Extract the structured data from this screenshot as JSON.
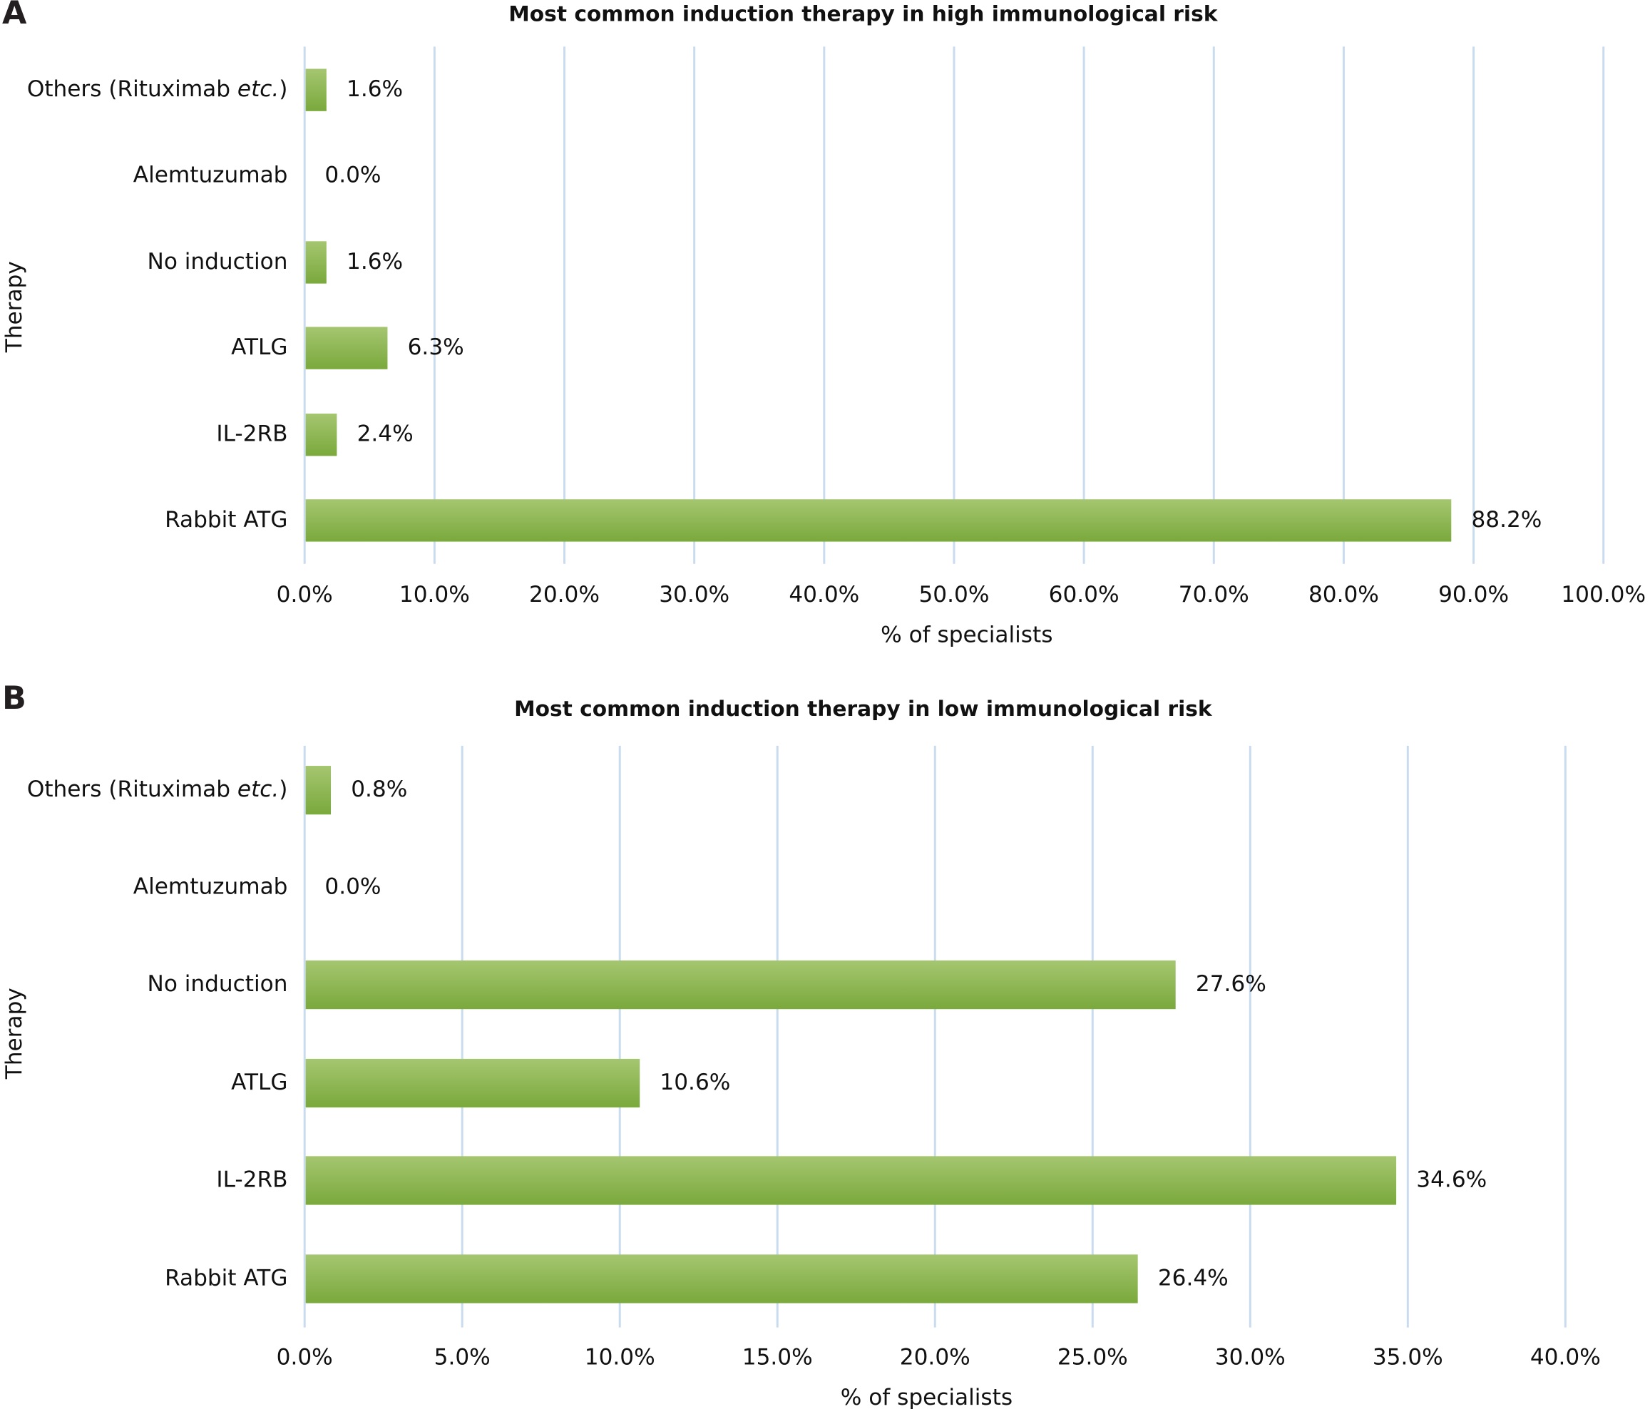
{
  "colors": {
    "bar_top": "#a5c670",
    "bar_bottom": "#7aa93c",
    "grid": "#c9dbee",
    "text": "#111111"
  },
  "chart_data": [
    {
      "type": "bar",
      "orientation": "horizontal",
      "panel": "A",
      "title": "Most common induction therapy in high immunological risk",
      "xlabel": "% of specialists",
      "ylabel": "Therapy",
      "xlim": [
        0,
        100
      ],
      "xticks": [
        "0.0%",
        "10.0%",
        "20.0%",
        "30.0%",
        "40.0%",
        "50.0%",
        "60.0%",
        "70.0%",
        "80.0%",
        "90.0%",
        "100.0%"
      ],
      "grid": true,
      "categories": [
        "Others (Rituximab etc.)",
        "Alemtuzumab",
        "No induction",
        "ATLG",
        "IL-2RB",
        "Rabbit  ATG"
      ],
      "values": [
        1.6,
        0.0,
        1.6,
        6.3,
        2.4,
        88.2
      ],
      "value_labels": [
        "1.6%",
        "0.0%",
        "1.6%",
        "6.3%",
        "2.4%",
        "88.2%"
      ]
    },
    {
      "type": "bar",
      "orientation": "horizontal",
      "panel": "B",
      "title": "Most common induction therapy in low immunological risk",
      "xlabel": "% of specialists",
      "ylabel": "Therapy",
      "xlim": [
        0,
        40
      ],
      "xticks": [
        "0.0%",
        "5.0%",
        "10.0%",
        "15.0%",
        "20.0%",
        "25.0%",
        "30.0%",
        "35.0%",
        "40.0%"
      ],
      "grid": true,
      "categories": [
        "Others (Rituximab etc.)",
        "Alemtuzumab",
        "No induction",
        "ATLG",
        "IL-2RB",
        "Rabbit  ATG"
      ],
      "values": [
        0.8,
        0.0,
        27.6,
        10.6,
        34.6,
        26.4
      ],
      "value_labels": [
        "0.8%",
        "0.0%",
        "27.6%",
        "10.6%",
        "34.6%",
        "26.4%"
      ]
    }
  ]
}
